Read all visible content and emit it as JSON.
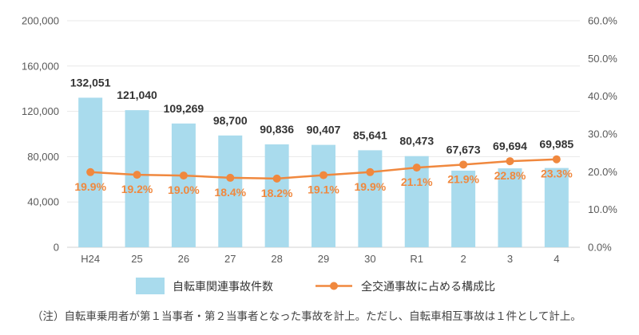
{
  "chart_data": {
    "type": "bar",
    "categories": [
      "H24",
      "25",
      "26",
      "27",
      "28",
      "29",
      "30",
      "R1",
      "2",
      "3",
      "4"
    ],
    "series": [
      {
        "name": "自転車関連事故件数",
        "type": "bar",
        "axis": "left",
        "color": "#a9dbed",
        "values": [
          132051,
          121040,
          109269,
          98700,
          90836,
          90407,
          85641,
          80473,
          67673,
          69694,
          69985
        ],
        "labels": [
          "132,051",
          "121,040",
          "109,269",
          "98,700",
          "90,836",
          "90,407",
          "85,641",
          "80,473",
          "67,673",
          "69,694",
          "69,985"
        ]
      },
      {
        "name": "全交通事故に占める構成比",
        "type": "line",
        "axis": "right",
        "color": "#f0883e",
        "values": [
          19.9,
          19.2,
          19.0,
          18.4,
          18.2,
          19.1,
          19.9,
          21.1,
          21.9,
          22.8,
          23.3
        ],
        "labels": [
          "19.9%",
          "19.2%",
          "19.0%",
          "18.4%",
          "18.2%",
          "19.1%",
          "19.9%",
          "21.1%",
          "21.9%",
          "22.8%",
          "23.3%"
        ]
      }
    ],
    "y_left": {
      "range": [
        0,
        200000
      ],
      "ticks": [
        0,
        40000,
        80000,
        120000,
        160000,
        200000
      ],
      "tick_labels": [
        "0",
        "40,000",
        "80,000",
        "120,000",
        "160,000",
        "200,000"
      ]
    },
    "y_right": {
      "range": [
        0,
        60
      ],
      "ticks": [
        0,
        10,
        20,
        30,
        40,
        50,
        60
      ],
      "tick_labels": [
        "0.0%",
        "10.0%",
        "20.0%",
        "30.0%",
        "40.0%",
        "50.0%",
        "60.0%"
      ]
    },
    "grid": true,
    "legend": "bottom"
  },
  "footnote": "（注）自転車乗用者が第１当事者・第２当事者となった事故を計上。ただし、自転車相互事故は１件として計上。",
  "colors": {
    "axis_text": "#595959",
    "bar_label": "#333333",
    "grid": "#e8e8e8",
    "baseline": "#d0d0d0"
  }
}
